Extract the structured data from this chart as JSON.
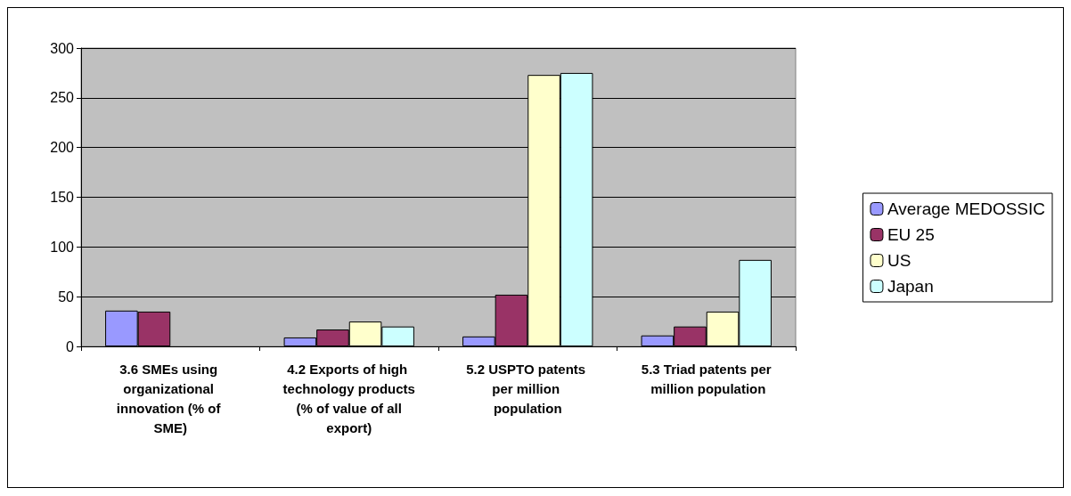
{
  "chart_data": {
    "type": "bar",
    "categories": [
      "3.6 SMEs using organizational innovation (% of SME)",
      "4.2 Exports of high technology products (% of value of all export)",
      "5.2 USPTO patents per million population",
      "5.3 Triad patents per million population"
    ],
    "series": [
      {
        "name": "Average MEDOSSIC",
        "color": "#9999ff",
        "values": [
          36,
          9,
          10,
          11
        ]
      },
      {
        "name": "EU 25",
        "color": "#993366",
        "values": [
          35,
          17,
          52,
          20
        ]
      },
      {
        "name": "US",
        "color": "#ffffcc",
        "values": [
          null,
          25,
          273,
          35
        ]
      },
      {
        "name": "Japan",
        "color": "#ccffff",
        "values": [
          null,
          20,
          275,
          87
        ]
      }
    ],
    "ylim": [
      0,
      300
    ],
    "yticks": [
      0,
      50,
      100,
      150,
      200,
      250,
      300
    ],
    "grid": "y",
    "legend": "right"
  }
}
